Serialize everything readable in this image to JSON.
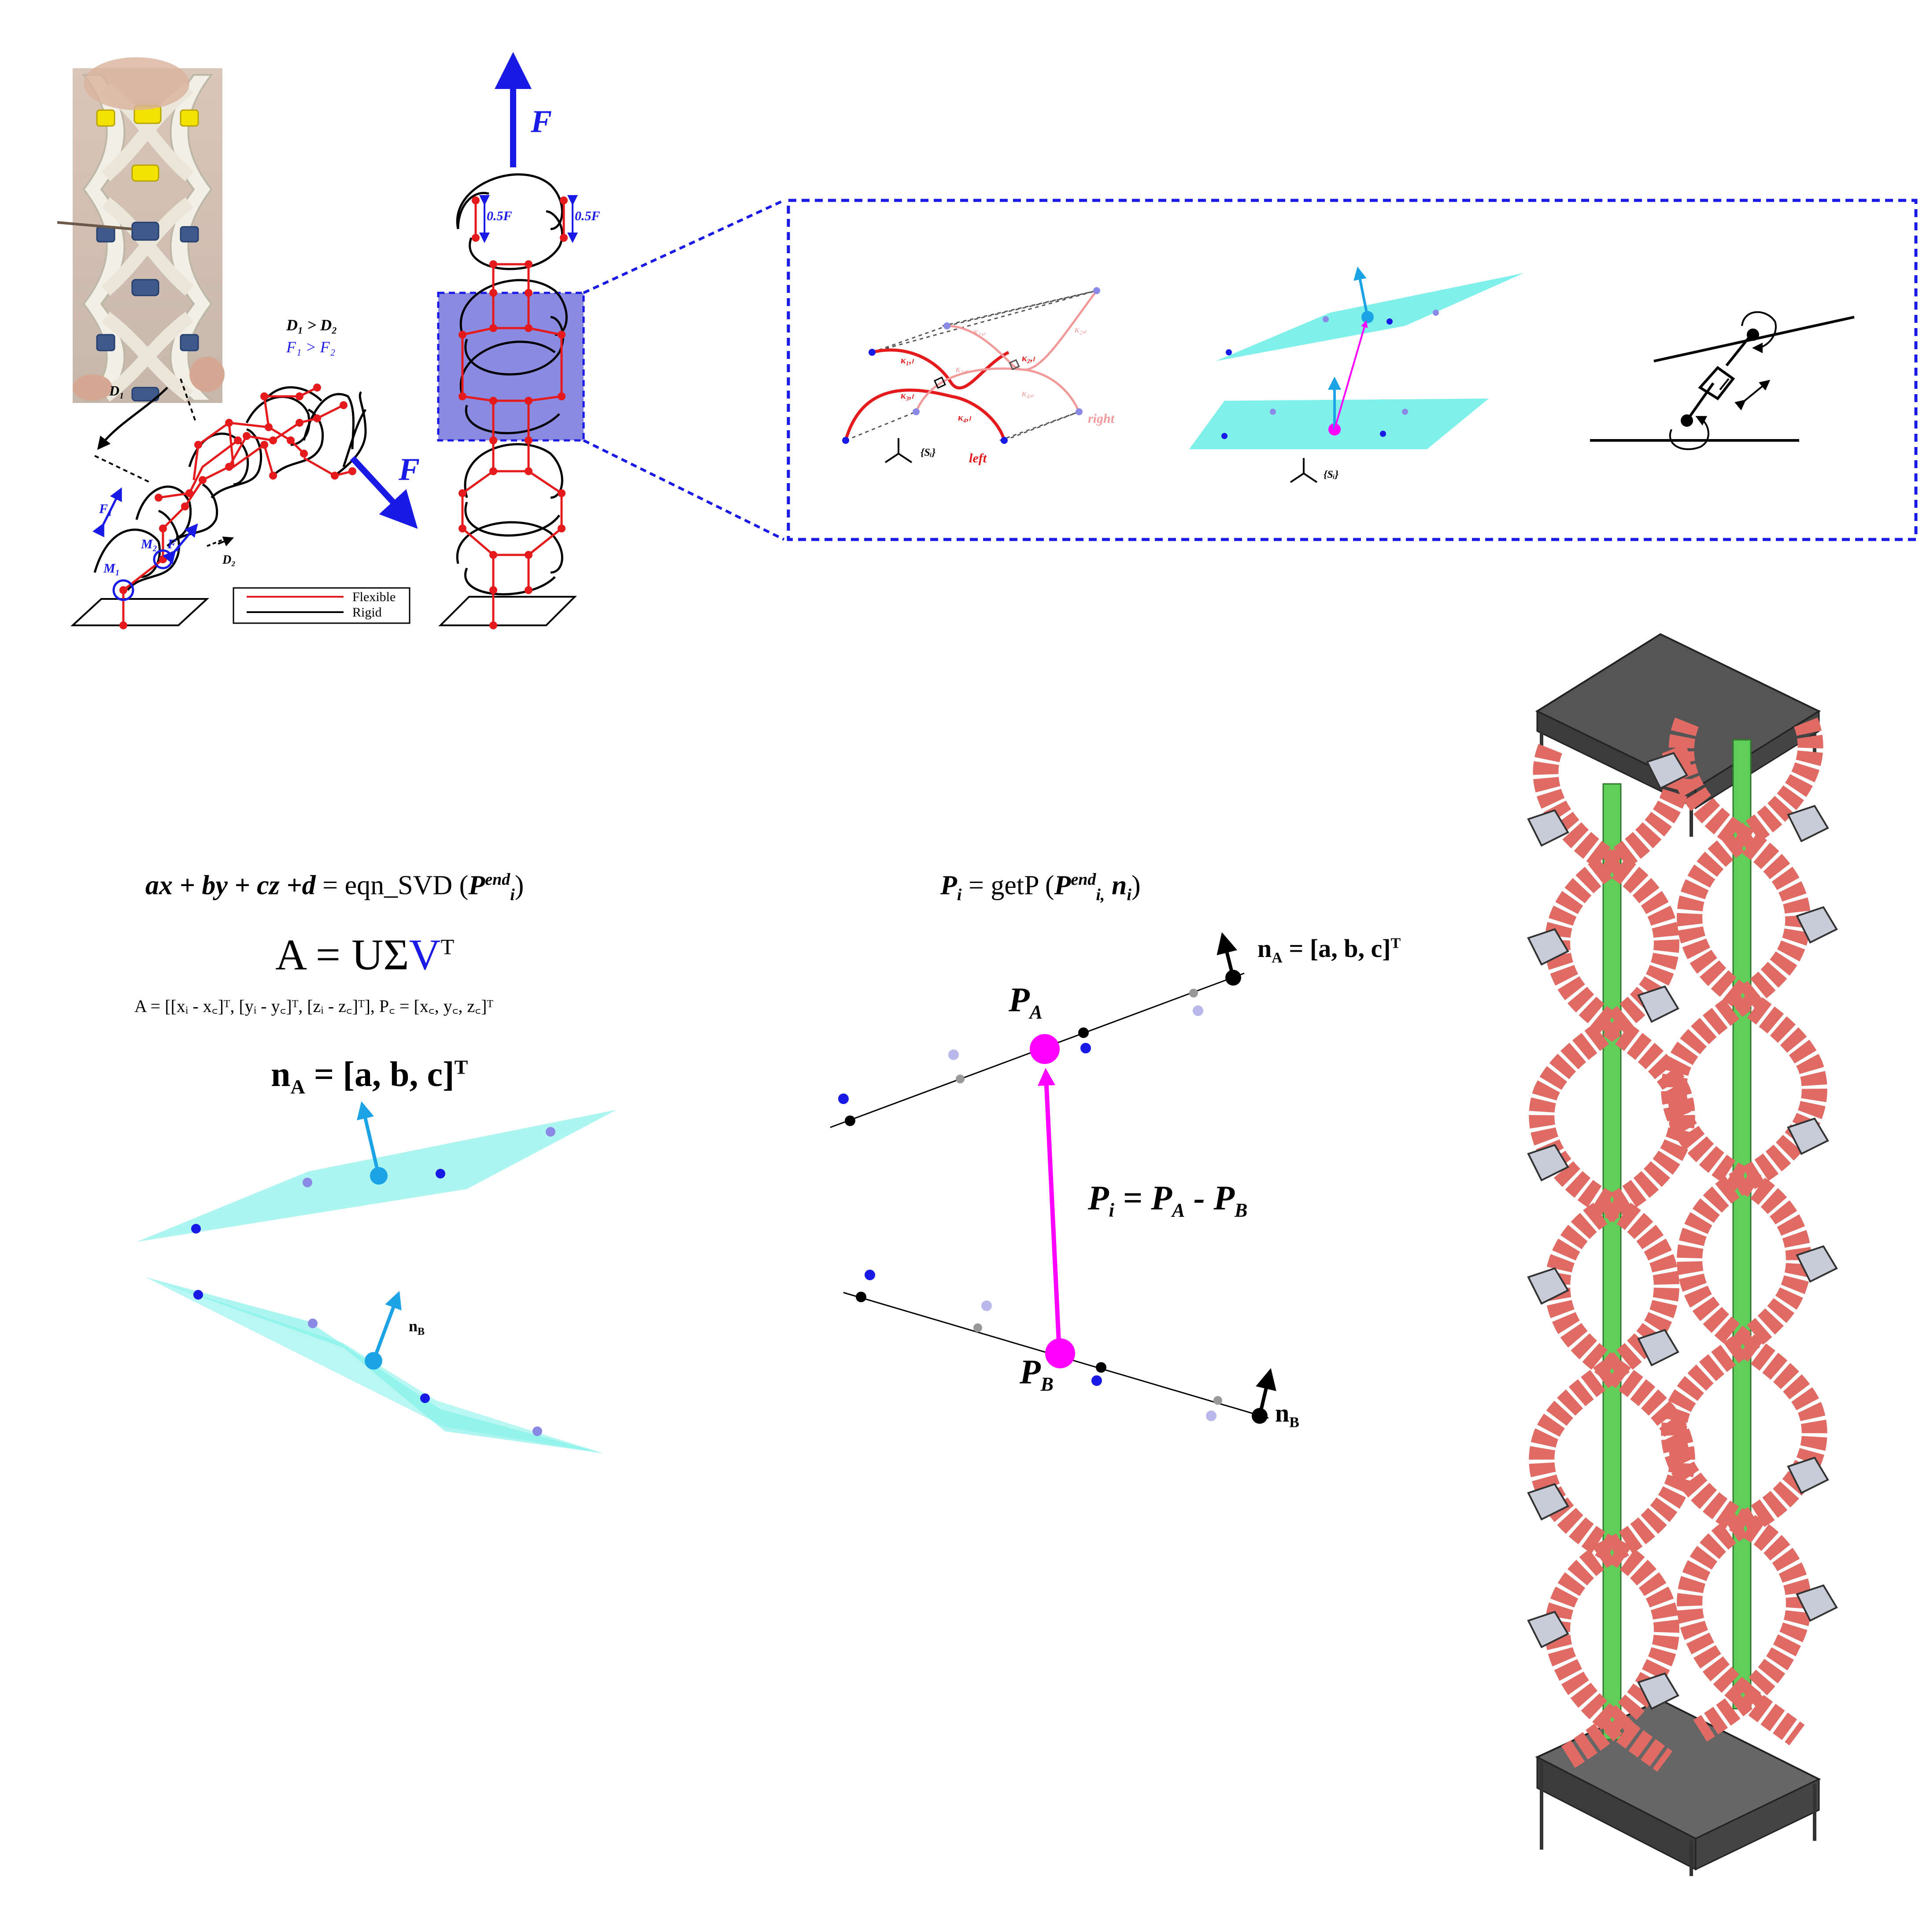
{
  "top_left": {
    "photo_label": "D₁",
    "cond_d": "D₁ > D₂",
    "cond_f": "F₁ > F₂",
    "force": "F",
    "f1": "F₁",
    "f2": "F₂",
    "m1": "M₁",
    "m2": "M₂",
    "d2": "D₂",
    "legend": {
      "flexible": "Flexible",
      "rigid": "Rigid"
    }
  },
  "top_center": {
    "force": "F",
    "half_left": "0.5F",
    "half_right": "0.5F"
  },
  "zoom": {
    "labels": {
      "k11": "κ₁,ₗ",
      "k31": "κ₃,ₗ",
      "k41": "κ₄,ₗ",
      "k21": "κ₂,ₗ",
      "k1r": "κ₁,ᵣ",
      "k2r": "κ₂,ᵣ",
      "k3r": "κ₃,ᵣ",
      "k4r": "κ₄,ᵣ",
      "left": "left",
      "right": "right",
      "frame": "{Sᵢ}",
      "frame2": "{Sᵢ}"
    }
  },
  "bottom_left": {
    "eq_lhs": "ax + by + cz +d",
    "eq_rhs": " = eqn_SVD (",
    "eq_p": "P",
    "eq_sup": "end",
    "eq_sub": "i",
    "eq_close": ")",
    "svd_lhs": "A = UΣ",
    "svd_v": "V",
    "svd_t": "T",
    "defs": "A = [[xᵢ - x꜀]ᵀ, [yᵢ - y꜀]ᵀ, [zᵢ - z꜀]ᵀ], P꜀ = [x꜀, y꜀, z꜀]ᵀ",
    "na_label": "n",
    "na_sub": "A",
    "na_rest": " = [a, b, c]",
    "na_sup": "T",
    "nb_label": "n",
    "nb_sub": "B"
  },
  "bottom_center": {
    "eq_lhs_p": "P",
    "eq_lhs_sub": "i",
    "eq_mid": " = getP (",
    "eq_p": "P",
    "eq_sup": "end",
    "eq_sub": "i,",
    "eq_n": " n",
    "eq_n_sub": "i",
    "eq_close": ")",
    "na_label": "n",
    "na_sub": "A",
    "na_rest": " = [a, b, c]",
    "na_sup": "T",
    "pa": "P",
    "pa_sub": "A",
    "pb": "P",
    "pb_sub": "B",
    "pi_eq": "P",
    "pi_sub": "i",
    "pi_mid": " = P",
    "pi_a": "A",
    "pi_minus": " - P",
    "pi_b": "B",
    "nb_label": "n",
    "nb_sub": "B"
  },
  "colors": {
    "flexible": "#e41a1c",
    "rigid": "#000000",
    "blue": "#1a1ae6",
    "plane": "#7ff0ea",
    "magenta": "#ff00ff",
    "cyan_normal": "#1ca3e6",
    "box_fill": "#8a8ae0",
    "module_pink": "#e06a64",
    "module_green": "#5fcf5a",
    "module_grey": "#c8ccd8",
    "plate": "#555555"
  }
}
